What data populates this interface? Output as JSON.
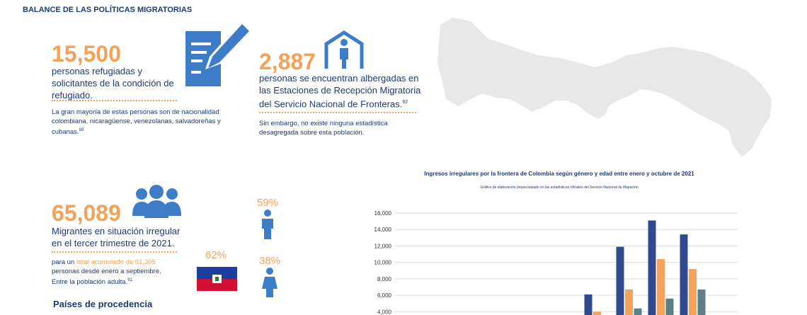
{
  "header": {
    "title": "BALANCE DE LAS POLÍTICAS MIGRATORIAS"
  },
  "refugees": {
    "number": "15,500",
    "label": "personas refugiadas y solicitantes de la condición de refugiado.",
    "note": "La gran mayoría de estas personas son de nacionalidad colombiana, nicaragüense, venezolanas, salvadoreñas y cubanas.",
    "footnote": "93"
  },
  "shelters": {
    "number": "2,887",
    "label": "personas se encuentran albergadas en las Estaciones de Recepción Migratoria del Servicio Nacional de Fronteras.",
    "footnote": "92",
    "note": "Sin embargo, no existe ninguna estadística desagregada sobre esta población."
  },
  "migrants": {
    "number": "65,089",
    "label": "Migrantes en situación irregular en el tercer trimestre de 2021.",
    "note_start": "para un",
    "note_highlight": "total acumulado de 91,305",
    "note_end": "personas desde enero a septiembre. Entre la población adulta.",
    "footnote": "91",
    "haiti_share": "62%",
    "male_share": "59%",
    "female_share": "38%",
    "origin_title": "Países de procedencia"
  },
  "chart_data": {
    "type": "bar",
    "title": "Ingresos irregulares por la frontera de Colombia según género y edad entre enero y octubre de 2021",
    "subtitle": "Gráfico de elaboración propia basado en las estadísticas oficiales del Servicio Nacional de Migración",
    "categories": [
      null,
      null,
      null,
      null,
      null,
      null,
      null,
      null,
      null,
      null
    ],
    "series": [
      {
        "color": "#2e4a8c",
        "values": [
          null,
          null,
          null,
          null,
          null,
          null,
          6100,
          11900,
          15100,
          13400
        ]
      },
      {
        "color": "#f4a259",
        "values": [
          null,
          null,
          null,
          null,
          null,
          null,
          4000,
          6700,
          10400,
          9200
        ]
      },
      {
        "color": "#5f7f86",
        "values": [
          null,
          null,
          null,
          null,
          null,
          null,
          null,
          4400,
          5600,
          6700
        ]
      }
    ],
    "ylim": [
      3600,
      16000
    ],
    "yticks": [
      {
        "value": 4000,
        "label": "4,000"
      },
      {
        "value": 6000,
        "label": "6,000"
      },
      {
        "value": 8000,
        "label": "8,000"
      },
      {
        "value": 10000,
        "label": "10,000"
      },
      {
        "value": 12000,
        "label": "12,000"
      },
      {
        "value": 14000,
        "label": "14,000"
      },
      {
        "value": 16000,
        "label": "16,000"
      }
    ],
    "grid": true
  }
}
